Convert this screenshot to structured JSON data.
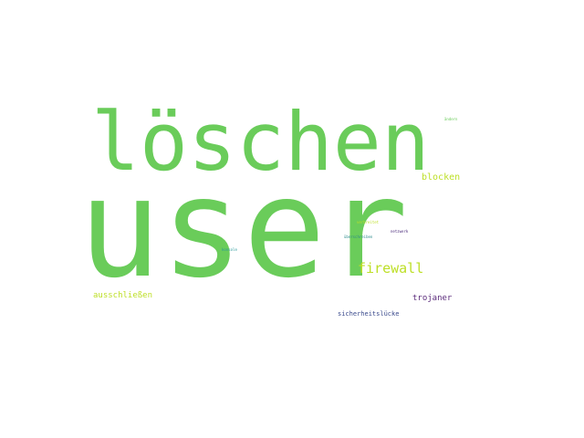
{
  "wordcloud": {
    "words": [
      {
        "text": "user",
        "color": "#6acc5a"
      },
      {
        "text": "löschen",
        "color": "#6acc5a"
      },
      {
        "text": "firewall",
        "color": "#bddf26"
      },
      {
        "text": "blocken",
        "color": "#bddf26"
      },
      {
        "text": "trojaner",
        "color": "#5a2a7a"
      },
      {
        "text": "ausschließen",
        "color": "#bddf26"
      },
      {
        "text": "sicherheitslücke",
        "color": "#3a4a8c"
      },
      {
        "text": "ändern",
        "color": "#6acc5a"
      },
      {
        "text": "verbreitet",
        "color": "#bddf26"
      },
      {
        "text": "netzwerk",
        "color": "#4a2a7a"
      },
      {
        "text": "überschreiben",
        "color": "#2a8a8a"
      },
      {
        "text": "konsole",
        "color": "#2a9a9a"
      }
    ]
  }
}
